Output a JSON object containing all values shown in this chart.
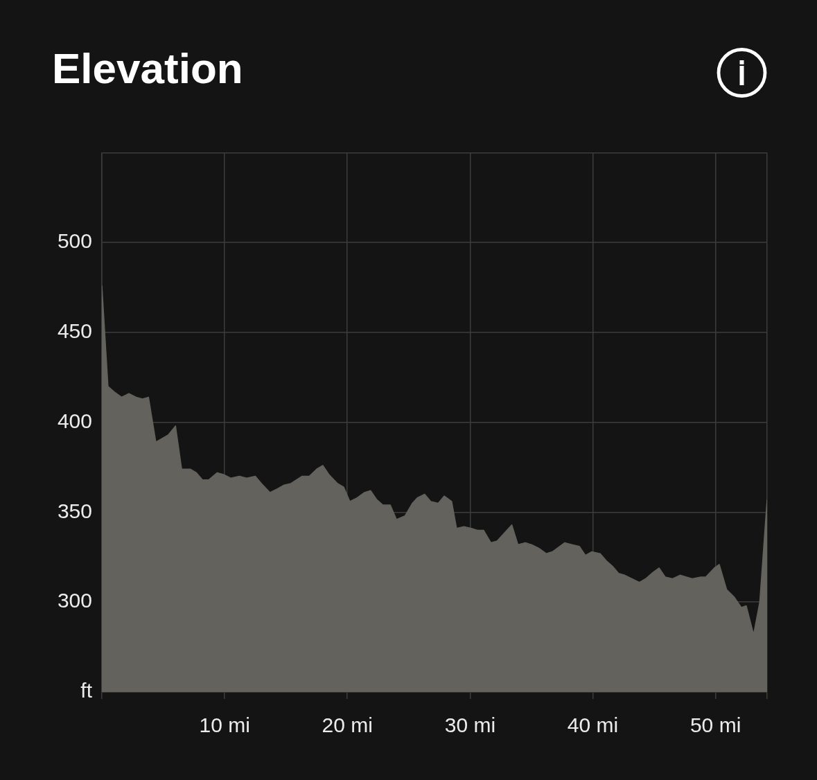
{
  "chart_data": {
    "type": "area",
    "title": "Elevation",
    "x": [
      0,
      0.5,
      1.0,
      1.6,
      2.2,
      2.8,
      3.3,
      3.8,
      4.4,
      5.4,
      6.0,
      6.5,
      7.2,
      7.7,
      8.2,
      8.7,
      9.4,
      9.9,
      10.5,
      11.2,
      11.8,
      12.5,
      13.0,
      13.7,
      14.3,
      14.8,
      15.4,
      16.3,
      16.9,
      17.5,
      18.0,
      18.5,
      19.2,
      19.7,
      20.2,
      20.8,
      21.4,
      21.9,
      22.4,
      22.9,
      23.5,
      24.0,
      24.7,
      25.3,
      25.7,
      26.3,
      26.8,
      27.4,
      27.9,
      28.5,
      28.9,
      29.5,
      30.1,
      30.6,
      31.1,
      31.7,
      32.2,
      33.4,
      33.9,
      34.5,
      35.0,
      35.6,
      36.2,
      36.7,
      37.7,
      38.3,
      38.9,
      39.4,
      39.9,
      40.6,
      41.1,
      41.6,
      42.1,
      42.6,
      43.8,
      44.3,
      44.8,
      45.4,
      45.9,
      46.5,
      47.1,
      48.1,
      48.8,
      49.2,
      49.9,
      50.3,
      50.9,
      51.5,
      52.1,
      52.5,
      53.1,
      53.6,
      54.2
    ],
    "values": [
      476,
      420,
      417,
      414,
      416,
      414,
      413,
      414,
      389,
      393,
      398,
      374,
      374,
      372,
      368,
      368,
      372,
      371,
      369,
      370,
      369,
      370,
      366,
      361,
      363,
      365,
      366,
      370,
      370,
      374,
      376,
      371,
      366,
      364,
      356,
      358,
      361,
      362,
      357,
      354,
      354,
      346,
      348,
      355,
      358,
      360,
      356,
      355,
      359,
      356,
      341,
      342,
      341,
      340,
      340,
      333,
      334,
      343,
      332,
      333,
      332,
      330,
      327,
      328,
      333,
      332,
      331,
      326,
      328,
      327,
      323,
      320,
      316,
      315,
      311,
      313,
      316,
      319,
      314,
      313,
      315,
      313,
      314,
      314,
      319,
      321,
      307,
      303,
      297,
      298,
      282,
      300,
      357
    ],
    "color": "#63625c",
    "xlim": [
      0,
      54.2
    ],
    "xticks": [
      {
        "value": 0,
        "label": null
      },
      {
        "value": 10,
        "label": "10 mi"
      },
      {
        "value": 20,
        "label": "20 mi"
      },
      {
        "value": 30,
        "label": "30 mi"
      },
      {
        "value": 40,
        "label": "40 mi"
      },
      {
        "value": 50,
        "label": "50 mi"
      },
      {
        "value": 54.2,
        "label": null
      }
    ],
    "ylim": [
      250,
      550
    ],
    "yticks": [
      {
        "value": 250,
        "label": "ft"
      },
      300,
      350,
      400,
      450,
      500,
      {
        "value": 550,
        "label": null
      }
    ],
    "grid": true
  }
}
